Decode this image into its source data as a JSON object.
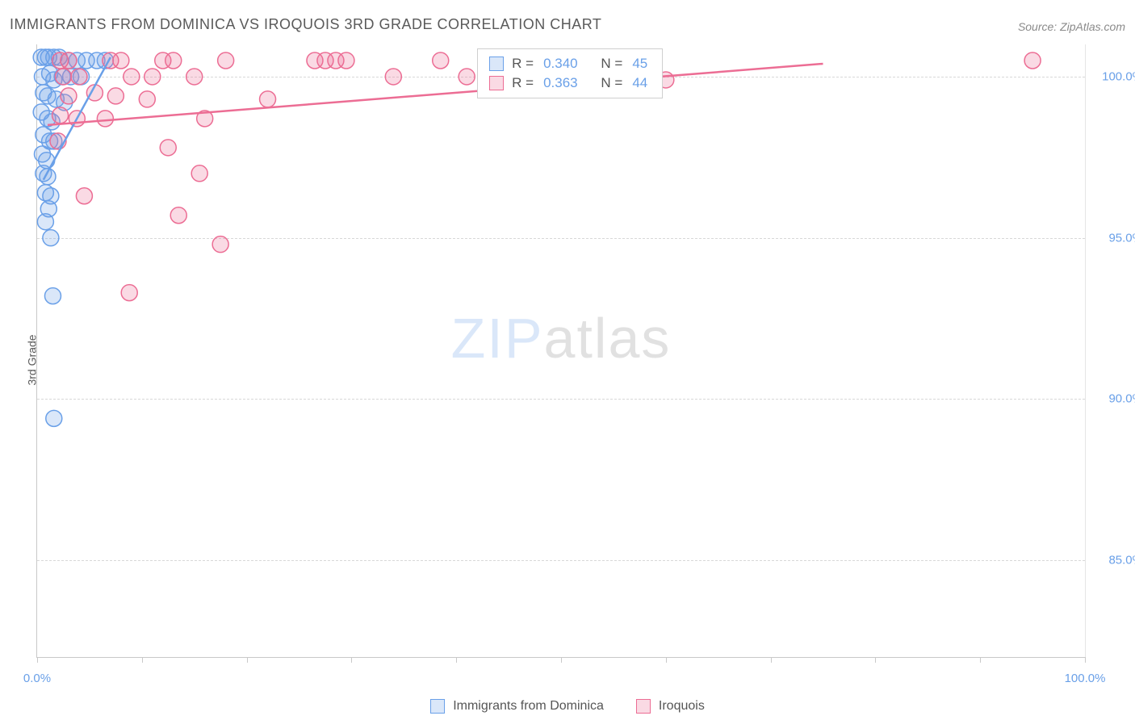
{
  "title": "IMMIGRANTS FROM DOMINICA VS IROQUOIS 3RD GRADE CORRELATION CHART",
  "source": "Source: ZipAtlas.com",
  "y_axis_label": "3rd Grade",
  "watermark": {
    "part1": "ZIP",
    "part2": "atlas"
  },
  "chart": {
    "type": "scatter",
    "xlim": [
      0,
      100
    ],
    "ylim": [
      82,
      101
    ],
    "y_ticks": [
      85.0,
      90.0,
      95.0,
      100.0
    ],
    "x_tick_positions": [
      0,
      10,
      20,
      30,
      40,
      50,
      60,
      70,
      80,
      90,
      100
    ],
    "x_tick_labels": {
      "0": "0.0%",
      "100": "100.0%"
    },
    "grid_color": "#d8d8d8",
    "axis_color": "#c9c9c9",
    "tick_label_color": "#6aa0e8",
    "marker_radius": 10,
    "marker_fill_opacity": 0.25,
    "marker_stroke_width": 1.5,
    "line_width": 2.5,
    "series": [
      {
        "key": "dominica",
        "label": "Immigrants from Dominica",
        "color": "#6aa0e8",
        "r_value": "0.340",
        "n_value": "45",
        "trend": {
          "x1": 0.6,
          "y1": 96.8,
          "x2": 7.0,
          "y2": 100.6
        },
        "points": [
          [
            0.4,
            100.6
          ],
          [
            0.8,
            100.6
          ],
          [
            1.1,
            100.6
          ],
          [
            1.6,
            100.6
          ],
          [
            2.1,
            100.6
          ],
          [
            3.0,
            100.5
          ],
          [
            3.8,
            100.5
          ],
          [
            4.7,
            100.5
          ],
          [
            5.7,
            100.5
          ],
          [
            6.5,
            100.5
          ],
          [
            0.5,
            100.0
          ],
          [
            1.2,
            100.1
          ],
          [
            1.6,
            99.9
          ],
          [
            2.4,
            100.0
          ],
          [
            3.2,
            100.0
          ],
          [
            4.2,
            100.0
          ],
          [
            0.6,
            99.5
          ],
          [
            1.0,
            99.4
          ],
          [
            1.8,
            99.3
          ],
          [
            2.6,
            99.2
          ],
          [
            0.4,
            98.9
          ],
          [
            1.0,
            98.7
          ],
          [
            1.4,
            98.6
          ],
          [
            0.6,
            98.2
          ],
          [
            1.2,
            98.0
          ],
          [
            1.6,
            98.0
          ],
          [
            0.5,
            97.6
          ],
          [
            0.9,
            97.4
          ],
          [
            0.6,
            97.0
          ],
          [
            1.0,
            96.9
          ],
          [
            0.8,
            96.4
          ],
          [
            1.3,
            96.3
          ],
          [
            1.1,
            95.9
          ],
          [
            0.8,
            95.5
          ],
          [
            1.3,
            95.0
          ],
          [
            1.5,
            93.2
          ],
          [
            1.6,
            89.4
          ]
        ]
      },
      {
        "key": "iroquois",
        "label": "Iroquois",
        "color": "#ec6d94",
        "r_value": "0.363",
        "n_value": "44",
        "trend": {
          "x1": 1.0,
          "y1": 98.5,
          "x2": 75.0,
          "y2": 100.4
        },
        "points": [
          [
            2.2,
            100.5
          ],
          [
            3.0,
            100.5
          ],
          [
            7.0,
            100.5
          ],
          [
            8.0,
            100.5
          ],
          [
            12.0,
            100.5
          ],
          [
            13.0,
            100.5
          ],
          [
            18.0,
            100.5
          ],
          [
            26.5,
            100.5
          ],
          [
            27.5,
            100.5
          ],
          [
            28.5,
            100.5
          ],
          [
            29.5,
            100.5
          ],
          [
            38.5,
            100.5
          ],
          [
            54.0,
            100.5
          ],
          [
            95.0,
            100.5
          ],
          [
            2.5,
            100.0
          ],
          [
            4.0,
            100.0
          ],
          [
            9.0,
            100.0
          ],
          [
            11.0,
            100.0
          ],
          [
            15.0,
            100.0
          ],
          [
            34.0,
            100.0
          ],
          [
            41.0,
            100.0
          ],
          [
            57.0,
            100.1
          ],
          [
            60.0,
            99.9
          ],
          [
            3.0,
            99.4
          ],
          [
            5.5,
            99.5
          ],
          [
            7.5,
            99.4
          ],
          [
            10.5,
            99.3
          ],
          [
            22.0,
            99.3
          ],
          [
            2.2,
            98.8
          ],
          [
            3.8,
            98.7
          ],
          [
            6.5,
            98.7
          ],
          [
            16.0,
            98.7
          ],
          [
            2.0,
            98.0
          ],
          [
            12.5,
            97.8
          ],
          [
            15.5,
            97.0
          ],
          [
            4.5,
            96.3
          ],
          [
            13.5,
            95.7
          ],
          [
            17.5,
            94.8
          ],
          [
            8.8,
            93.3
          ]
        ]
      }
    ]
  },
  "stat_box": {
    "r_label": "R =",
    "n_label": "N ="
  }
}
